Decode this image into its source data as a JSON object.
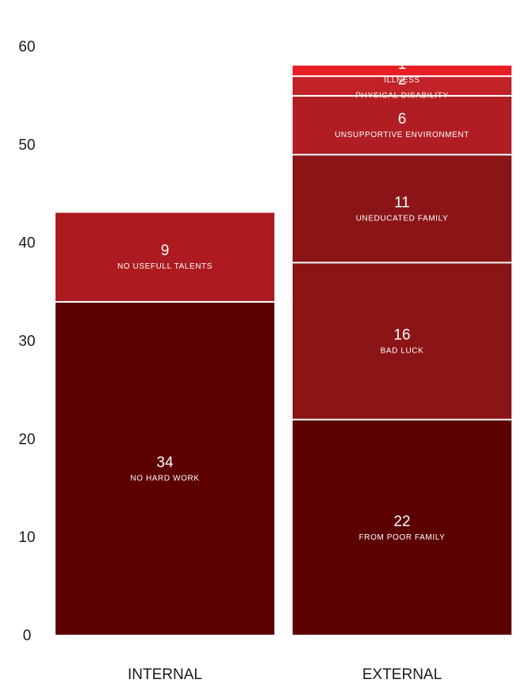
{
  "chart_data": {
    "type": "bar",
    "stacked": true,
    "categories": [
      "INTERNAL",
      "EXTERNAL"
    ],
    "ylim": [
      0,
      60
    ],
    "yticks": [
      "0",
      "10",
      "20",
      "30",
      "40",
      "50",
      "60"
    ],
    "grid": false,
    "stacks": [
      {
        "category": "INTERNAL",
        "segments": [
          {
            "value": 34,
            "value_label": "34",
            "label": "NO HARD WORK",
            "color": "#5c0000"
          },
          {
            "value": 9,
            "value_label": "9",
            "label": "NO USEFULL TALENTS",
            "color": "#ad1b21"
          }
        ]
      },
      {
        "category": "EXTERNAL",
        "segments": [
          {
            "value": 22,
            "value_label": "22",
            "label": "FROM POOR FAMILY",
            "color": "#5c0000"
          },
          {
            "value": 16,
            "value_label": "16",
            "label": "BAD LUCK",
            "color": "#8b1516"
          },
          {
            "value": 11,
            "value_label": "11",
            "label": "UNEDUCATED FAMILY",
            "color": "#8b1516"
          },
          {
            "value": 6,
            "value_label": "6",
            "label": "UNSUPPORTIVE ENVIRONMENT",
            "color": "#b01e24"
          },
          {
            "value": 2,
            "value_label": "2",
            "label": "PHYSICAL DISABILITY",
            "color": "#c02227"
          },
          {
            "value": 1,
            "value_label": "1",
            "label": "ILLNESS",
            "color": "#ea1f26"
          }
        ]
      }
    ]
  }
}
